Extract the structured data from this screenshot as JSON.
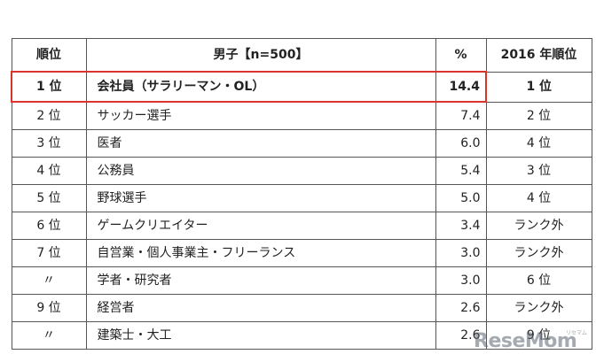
{
  "table": {
    "headers": {
      "rank": "順位",
      "name": "男子【n=500】",
      "pct": "%",
      "prev": "2016 年順位"
    },
    "rows": [
      {
        "rank": "1 位",
        "name": "会社員（サラリーマン・OL）",
        "pct": "14.4",
        "prev": "1 位",
        "highlight": true
      },
      {
        "rank": "2 位",
        "name": "サッカー選手",
        "pct": "7.4",
        "prev": "2 位"
      },
      {
        "rank": "3 位",
        "name": "医者",
        "pct": "6.0",
        "prev": "4 位"
      },
      {
        "rank": "4 位",
        "name": "公務員",
        "pct": "5.4",
        "prev": "3 位"
      },
      {
        "rank": "5 位",
        "name": "野球選手",
        "pct": "5.0",
        "prev": "4 位"
      },
      {
        "rank": "6 位",
        "name": "ゲームクリエイター",
        "pct": "3.4",
        "prev": "ランク外"
      },
      {
        "rank": "7 位",
        "name": "自営業・個人事業主・フリーランス",
        "pct": "3.0",
        "prev": "ランク外"
      },
      {
        "rank": "〃",
        "name": "学者・研究者",
        "pct": "3.0",
        "prev": "6 位"
      },
      {
        "rank": "9 位",
        "name": "経営者",
        "pct": "2.6",
        "prev": "ランク外"
      },
      {
        "rank": "〃",
        "name": "建築士・大工",
        "pct": "2.6",
        "prev": "9 位"
      }
    ]
  },
  "watermark": {
    "logo_text": "ReseMom",
    "logo_kana": "リセマム"
  },
  "colors": {
    "highlight_border": "#d9342b",
    "grid": "#555555"
  }
}
